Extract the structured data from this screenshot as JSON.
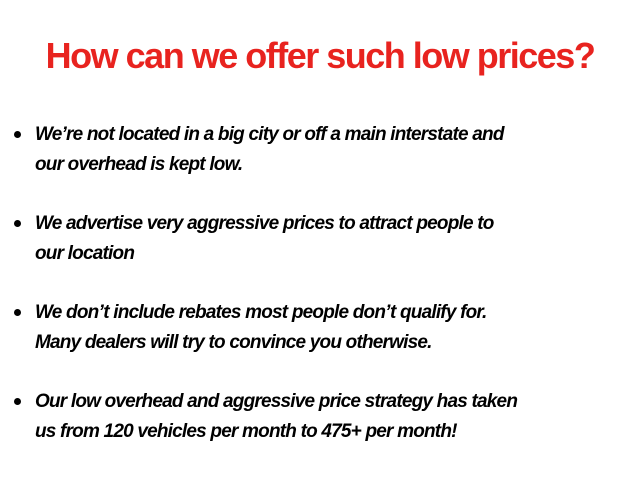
{
  "title": "How can we offer such low prices?",
  "colors": {
    "title": "#e8231f",
    "text": "#000000"
  },
  "bullets": [
    {
      "lines": [
        "We’re not located in a big city or off a main interstate and",
        "our overhead is kept low."
      ]
    },
    {
      "lines": [
        "We advertise very aggressive prices to attract people to",
        "our location"
      ]
    },
    {
      "lines": [
        "We don’t include rebates most people don’t qualify for.",
        "Many dealers will try to convince you otherwise."
      ]
    },
    {
      "lines": [
        "Our low overhead and aggressive price strategy has taken",
        "us from 120 vehicles per month to 475+ per month!"
      ]
    }
  ]
}
